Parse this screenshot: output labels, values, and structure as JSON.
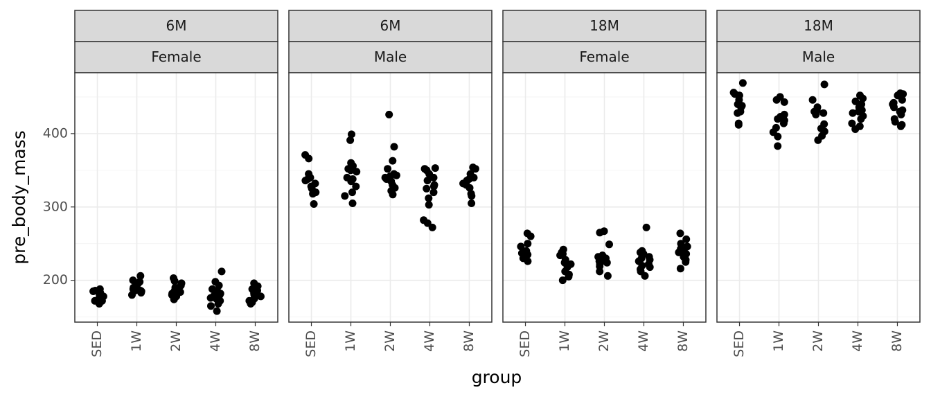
{
  "chart_data": {
    "type": "scatter",
    "xlabel": "group",
    "ylabel": "pre_body_mass",
    "categories": [
      "SED",
      "1W",
      "2W",
      "4W",
      "8W"
    ],
    "yticks": [
      200,
      300,
      400
    ],
    "ylim": [
      143,
      483
    ],
    "grid": true,
    "panels": [
      {
        "age": "6M",
        "sex": "Female",
        "points": {
          "SED": [
            168,
            172,
            175,
            178,
            180,
            182,
            185,
            172,
            188,
            176,
            183,
            186
          ],
          "1W": [
            206,
            200,
            195,
            190,
            188,
            186,
            185,
            183,
            180,
            192,
            198,
            186
          ],
          "2W": [
            203,
            199,
            196,
            193,
            190,
            187,
            184,
            182,
            180,
            174,
            186,
            178
          ],
          "4W": [
            212,
            198,
            193,
            188,
            185,
            182,
            180,
            178,
            175,
            172,
            168,
            165,
            158,
            176,
            184
          ],
          "8W": [
            196,
            192,
            188,
            185,
            182,
            180,
            178,
            175,
            172,
            170,
            168,
            186
          ]
        }
      },
      {
        "age": "6M",
        "sex": "Male",
        "points": {
          "SED": [
            371,
            366,
            345,
            340,
            338,
            332,
            328,
            325,
            320,
            318,
            304,
            336
          ],
          "1W": [
            399,
            391,
            360,
            356,
            352,
            350,
            348,
            340,
            335,
            328,
            320,
            315,
            305,
            338
          ],
          "2W": [
            426,
            382,
            363,
            352,
            345,
            343,
            342,
            338,
            335,
            330,
            326,
            322,
            317,
            340
          ],
          "4W": [
            353,
            352,
            350,
            345,
            340,
            336,
            330,
            325,
            320,
            312,
            303,
            282,
            278,
            272,
            328
          ],
          "8W": [
            354,
            352,
            345,
            340,
            336,
            332,
            330,
            326,
            318,
            315,
            305,
            338
          ]
        }
      },
      {
        "age": "18M",
        "sex": "Female",
        "points": {
          "SED": [
            264,
            260,
            250,
            246,
            240,
            237,
            235,
            233,
            230,
            226,
            238
          ],
          "1W": [
            242,
            238,
            236,
            234,
            228,
            222,
            218,
            212,
            208,
            205,
            200,
            224
          ],
          "2W": [
            267,
            265,
            249,
            234,
            232,
            230,
            228,
            226,
            222,
            219,
            212,
            206,
            224
          ],
          "4W": [
            272,
            240,
            238,
            236,
            232,
            230,
            226,
            222,
            220,
            218,
            215,
            212,
            206,
            228
          ],
          "8W": [
            264,
            256,
            250,
            246,
            243,
            240,
            236,
            232,
            228,
            225,
            216,
            238
          ]
        }
      },
      {
        "age": "18M",
        "sex": "Male",
        "points": {
          "SED": [
            469,
            456,
            454,
            452,
            446,
            440,
            438,
            436,
            430,
            428,
            414,
            412
          ],
          "1W": [
            450,
            446,
            443,
            426,
            423,
            420,
            414,
            408,
            402,
            396,
            383,
            418
          ],
          "2W": [
            467,
            446,
            436,
            432,
            430,
            428,
            426,
            413,
            407,
            403,
            397,
            391
          ],
          "4W": [
            452,
            448,
            444,
            440,
            436,
            434,
            430,
            428,
            424,
            420,
            414,
            410,
            406,
            432
          ],
          "8W": [
            455,
            454,
            452,
            446,
            442,
            440,
            436,
            432,
            426,
            420,
            416,
            412,
            410,
            430
          ]
        }
      }
    ]
  }
}
